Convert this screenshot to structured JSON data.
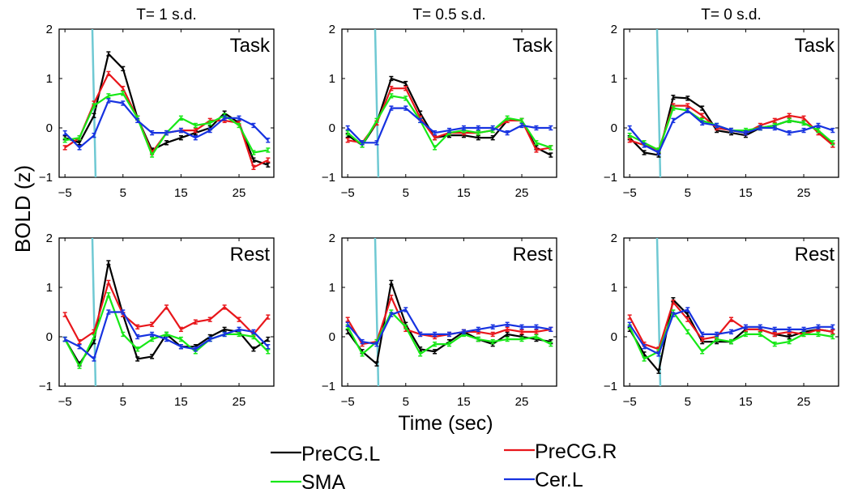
{
  "figure": {
    "ylabel": "BOLD (z)",
    "xlabel": "Time (sec)",
    "legend": [
      {
        "label": "PreCG.L",
        "color": "#000000"
      },
      {
        "label": "PreCG.R",
        "color": "#e8161b"
      },
      {
        "label": "SMA",
        "color": "#16e816"
      },
      {
        "label": "Cer.L",
        "color": "#1632e0"
      }
    ]
  },
  "chart_data": [
    {
      "type": "line",
      "title": "T= 1 s.d.",
      "corner_label": "Task",
      "xlim": [
        -6,
        31
      ],
      "ylim": [
        -1,
        2
      ],
      "xticks": [
        -5,
        5,
        15,
        25
      ],
      "yticks": [
        -1,
        0,
        1,
        2
      ],
      "x": [
        -5,
        -2.5,
        0,
        2.5,
        5,
        7.5,
        10,
        12.5,
        15,
        17.5,
        20,
        22.5,
        25,
        27.5,
        30
      ],
      "series": [
        {
          "name": "PreCG.L",
          "color": "#000000",
          "values": [
            -0.2,
            -0.3,
            0.25,
            1.5,
            1.2,
            0.2,
            -0.45,
            -0.3,
            -0.2,
            -0.1,
            0.0,
            0.3,
            0.1,
            -0.65,
            -0.75
          ]
        },
        {
          "name": "PreCG.R",
          "color": "#e8161b",
          "values": [
            -0.4,
            -0.2,
            0.5,
            1.1,
            0.8,
            0.2,
            -0.5,
            -0.1,
            -0.05,
            -0.05,
            0.15,
            0.15,
            0.1,
            -0.8,
            -0.65
          ]
        },
        {
          "name": "SMA",
          "color": "#16e816",
          "values": [
            -0.25,
            -0.2,
            0.45,
            0.65,
            0.7,
            0.2,
            -0.55,
            -0.1,
            0.2,
            0.05,
            0.1,
            0.25,
            0.05,
            -0.5,
            -0.45
          ]
        },
        {
          "name": "Cer.L",
          "color": "#1632e0",
          "values": [
            -0.1,
            -0.4,
            -0.15,
            0.55,
            0.5,
            0.15,
            -0.1,
            -0.1,
            -0.05,
            -0.2,
            -0.05,
            0.2,
            0.2,
            0.05,
            -0.25
          ]
        }
      ]
    },
    {
      "type": "line",
      "title": "T= 0.5 s.d.",
      "corner_label": "Task",
      "xlim": [
        -6,
        31
      ],
      "ylim": [
        -1,
        2
      ],
      "xticks": [
        -5,
        5,
        15,
        25
      ],
      "yticks": [
        -1,
        0,
        1,
        2
      ],
      "x": [
        -5,
        -2.5,
        0,
        2.5,
        5,
        7.5,
        10,
        12.5,
        15,
        17.5,
        20,
        22.5,
        25,
        27.5,
        30
      ],
      "series": [
        {
          "name": "PreCG.L",
          "color": "#000000",
          "values": [
            -0.15,
            -0.35,
            0.1,
            1.0,
            0.9,
            0.3,
            -0.2,
            -0.15,
            -0.15,
            -0.2,
            -0.2,
            0.15,
            0.15,
            -0.4,
            -0.55
          ]
        },
        {
          "name": "PreCG.R",
          "color": "#e8161b",
          "values": [
            -0.25,
            -0.3,
            0.1,
            0.8,
            0.8,
            0.2,
            -0.2,
            -0.1,
            -0.1,
            -0.1,
            -0.05,
            0.15,
            0.15,
            -0.45,
            -0.4
          ]
        },
        {
          "name": "SMA",
          "color": "#16e816",
          "values": [
            -0.1,
            -0.35,
            0.15,
            0.65,
            0.6,
            0.15,
            -0.4,
            -0.1,
            -0.05,
            -0.1,
            -0.05,
            0.2,
            0.15,
            -0.3,
            -0.4
          ]
        },
        {
          "name": "Cer.L",
          "color": "#1632e0",
          "values": [
            0.0,
            -0.3,
            -0.3,
            0.4,
            0.4,
            0.15,
            -0.1,
            -0.05,
            0.0,
            0.0,
            0.0,
            -0.1,
            0.05,
            0.0,
            0.0
          ]
        }
      ]
    },
    {
      "type": "line",
      "title": "T= 0 s.d.",
      "corner_label": "Task",
      "xlim": [
        -6,
        31
      ],
      "ylim": [
        -1,
        2
      ],
      "xticks": [
        -5,
        5,
        15,
        25
      ],
      "yticks": [
        -1,
        0,
        1,
        2
      ],
      "x": [
        -5,
        -2.5,
        0,
        2.5,
        5,
        7.5,
        10,
        12.5,
        15,
        17.5,
        20,
        22.5,
        25,
        27.5,
        30
      ],
      "series": [
        {
          "name": "PreCG.L",
          "color": "#000000",
          "values": [
            -0.2,
            -0.5,
            -0.55,
            0.62,
            0.6,
            0.4,
            -0.05,
            -0.1,
            -0.15,
            0.0,
            0.05,
            0.15,
            0.1,
            -0.05,
            -0.35
          ]
        },
        {
          "name": "PreCG.R",
          "color": "#e8161b",
          "values": [
            -0.25,
            -0.35,
            -0.45,
            0.45,
            0.45,
            0.25,
            0.0,
            -0.05,
            -0.1,
            0.05,
            0.15,
            0.25,
            0.2,
            -0.1,
            -0.35
          ]
        },
        {
          "name": "SMA",
          "color": "#16e816",
          "values": [
            -0.15,
            -0.3,
            -0.45,
            0.4,
            0.35,
            0.15,
            0.05,
            -0.05,
            -0.05,
            0.0,
            0.05,
            0.15,
            0.1,
            -0.05,
            -0.3
          ]
        },
        {
          "name": "Cer.L",
          "color": "#1632e0",
          "values": [
            0.0,
            -0.35,
            -0.5,
            0.15,
            0.35,
            0.1,
            0.05,
            -0.05,
            -0.1,
            0.0,
            0.0,
            -0.1,
            -0.05,
            0.05,
            -0.05
          ]
        }
      ]
    },
    {
      "type": "line",
      "title": "",
      "corner_label": "Rest",
      "xlim": [
        -6,
        31
      ],
      "ylim": [
        -1,
        2
      ],
      "xticks": [
        -5,
        5,
        15,
        25
      ],
      "yticks": [
        -1,
        0,
        1,
        2
      ],
      "x": [
        -5,
        -2.5,
        0,
        2.5,
        5,
        7.5,
        10,
        12.5,
        15,
        17.5,
        20,
        22.5,
        25,
        27.5,
        30
      ],
      "series": [
        {
          "name": "PreCG.L",
          "color": "#000000",
          "values": [
            -0.05,
            -0.55,
            -0.1,
            1.5,
            0.45,
            -0.45,
            -0.4,
            0.05,
            -0.2,
            -0.2,
            0.0,
            0.15,
            0.1,
            -0.25,
            -0.05
          ]
        },
        {
          "name": "PreCG.R",
          "color": "#e8161b",
          "values": [
            0.45,
            -0.1,
            0.1,
            1.1,
            0.45,
            0.2,
            0.25,
            0.6,
            0.15,
            0.3,
            0.35,
            0.6,
            0.35,
            0.05,
            0.4
          ]
        },
        {
          "name": "SMA",
          "color": "#16e816",
          "values": [
            -0.05,
            -0.6,
            0.0,
            0.85,
            0.05,
            -0.25,
            -0.05,
            0.05,
            -0.05,
            -0.3,
            -0.05,
            0.05,
            0.05,
            0.0,
            -0.3
          ]
        },
        {
          "name": "Cer.L",
          "color": "#1632e0",
          "values": [
            -0.05,
            -0.2,
            -0.45,
            0.5,
            0.5,
            0.0,
            0.05,
            -0.05,
            -0.2,
            -0.25,
            -0.05,
            0.05,
            0.15,
            0.1,
            -0.2
          ]
        }
      ]
    },
    {
      "type": "line",
      "title": "",
      "corner_label": "Rest",
      "xlim": [
        -6,
        31
      ],
      "ylim": [
        -1,
        2
      ],
      "xticks": [
        -5,
        5,
        15,
        25
      ],
      "yticks": [
        -1,
        0,
        1,
        2
      ],
      "x": [
        -5,
        -2.5,
        0,
        2.5,
        5,
        7.5,
        10,
        12.5,
        15,
        17.5,
        20,
        22.5,
        25,
        27.5,
        30
      ],
      "series": [
        {
          "name": "PreCG.L",
          "color": "#000000",
          "values": [
            0.1,
            -0.3,
            -0.55,
            1.1,
            0.25,
            -0.25,
            -0.3,
            -0.1,
            0.1,
            -0.05,
            -0.15,
            0.05,
            0.0,
            -0.05,
            -0.1
          ]
        },
        {
          "name": "PreCG.R",
          "color": "#e8161b",
          "values": [
            0.35,
            -0.15,
            -0.1,
            0.8,
            0.15,
            0.05,
            0.0,
            0.05,
            0.1,
            0.1,
            0.05,
            0.15,
            0.1,
            0.1,
            0.15
          ]
        },
        {
          "name": "SMA",
          "color": "#16e816",
          "values": [
            0.2,
            -0.35,
            -0.1,
            0.5,
            0.2,
            -0.35,
            -0.15,
            -0.15,
            0.05,
            -0.05,
            -0.1,
            -0.05,
            -0.05,
            0.0,
            -0.15
          ]
        },
        {
          "name": "Cer.L",
          "color": "#1632e0",
          "values": [
            0.25,
            -0.1,
            -0.15,
            0.45,
            0.55,
            0.05,
            0.05,
            0.05,
            0.1,
            0.15,
            0.2,
            0.25,
            0.2,
            0.2,
            0.15
          ]
        }
      ]
    },
    {
      "type": "line",
      "title": "",
      "corner_label": "Rest",
      "xlim": [
        -6,
        31
      ],
      "ylim": [
        -1,
        2
      ],
      "xticks": [
        -5,
        5,
        15,
        25
      ],
      "yticks": [
        -1,
        0,
        1,
        2
      ],
      "x": [
        -5,
        -2.5,
        0,
        2.5,
        5,
        7.5,
        10,
        12.5,
        15,
        17.5,
        20,
        22.5,
        25,
        27.5,
        30
      ],
      "series": [
        {
          "name": "PreCG.L",
          "color": "#000000",
          "values": [
            0.15,
            -0.35,
            -0.7,
            0.75,
            0.45,
            -0.1,
            -0.1,
            -0.1,
            0.15,
            0.15,
            0.05,
            0.0,
            0.1,
            0.15,
            0.1
          ]
        },
        {
          "name": "PreCG.R",
          "color": "#e8161b",
          "values": [
            0.4,
            -0.15,
            -0.25,
            0.7,
            0.35,
            -0.05,
            0.0,
            0.35,
            0.15,
            0.15,
            0.05,
            0.1,
            0.05,
            0.15,
            0.1
          ]
        },
        {
          "name": "SMA",
          "color": "#16e816",
          "values": [
            0.2,
            -0.45,
            -0.3,
            0.5,
            0.1,
            -0.3,
            -0.05,
            -0.1,
            0.05,
            0.05,
            -0.15,
            -0.1,
            0.05,
            0.05,
            0.0
          ]
        },
        {
          "name": "Cer.L",
          "color": "#1632e0",
          "values": [
            0.25,
            -0.2,
            -0.35,
            0.45,
            0.55,
            0.05,
            0.05,
            0.1,
            0.2,
            0.2,
            0.15,
            0.15,
            0.15,
            0.2,
            0.2
          ]
        }
      ]
    }
  ]
}
